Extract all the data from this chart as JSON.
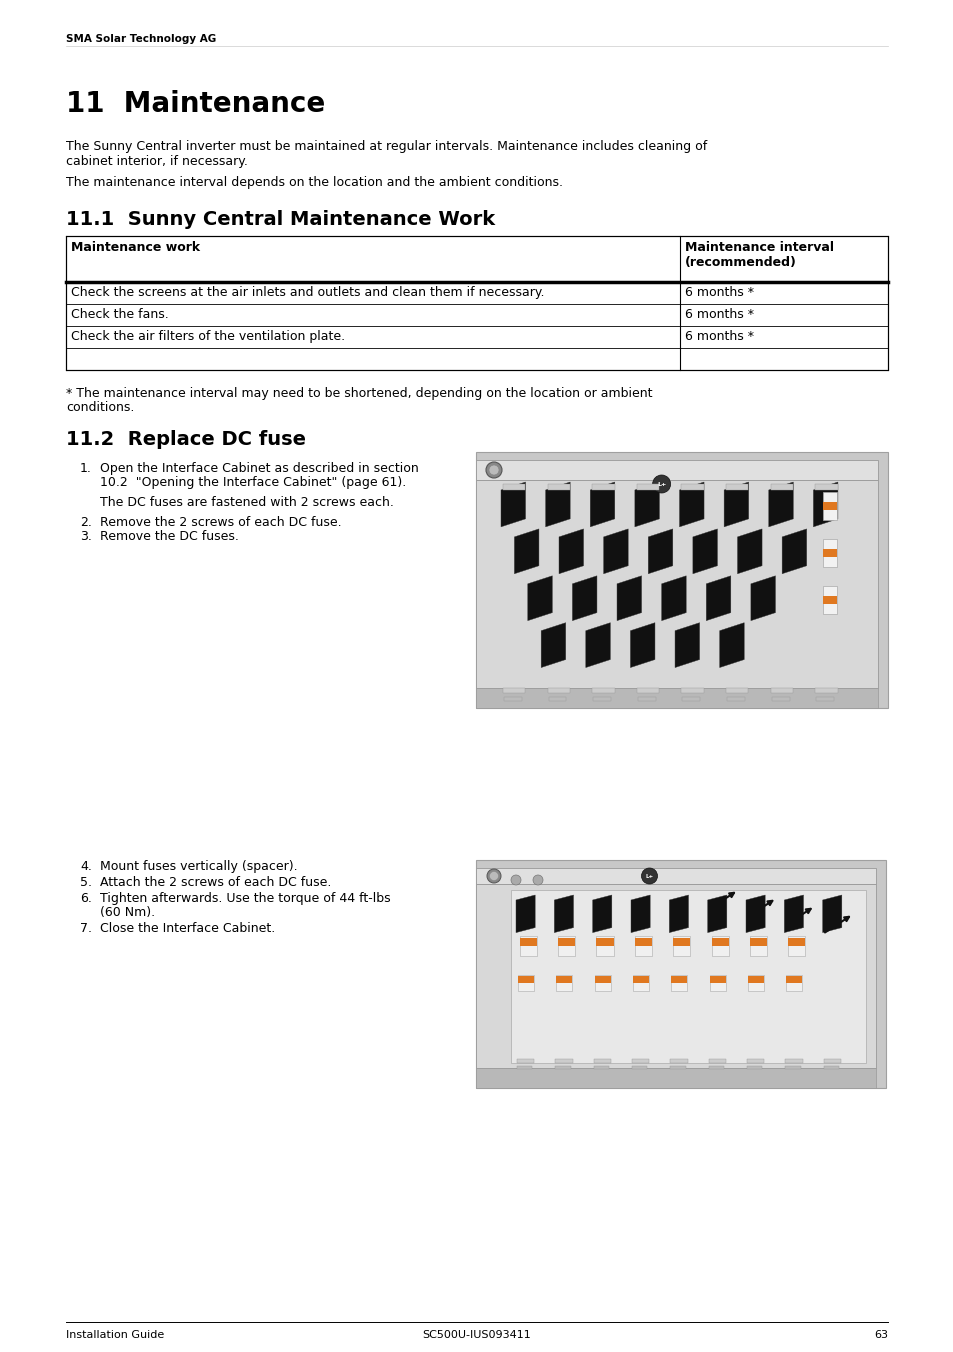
{
  "page_bg": "#ffffff",
  "header_text": "SMA Solar Technology AG",
  "header_font_size": 7.5,
  "chapter_title": "11  Maintenance",
  "chapter_title_size": 20,
  "para1_line1": "The Sunny Central inverter must be maintained at regular intervals. Maintenance includes cleaning of",
  "para1_line2": "cabinet interior, if necessary.",
  "para2": "The maintenance interval depends on the location and the ambient conditions.",
  "section1_title": "11.1  Sunny Central Maintenance Work",
  "section1_title_size": 14,
  "table_header_col1": "Maintenance work",
  "table_header_col2": "Maintenance interval\n(recommended)",
  "table_rows": [
    [
      "Check the screens at the air inlets and outlets and clean them if necessary.",
      "6 months *"
    ],
    [
      "Check the fans.",
      "6 months *"
    ],
    [
      "Check the air filters of the ventilation plate.",
      "6 months *"
    ]
  ],
  "table_note_line1": "* The maintenance interval may need to be shortened, depending on the location or ambient",
  "table_note_line2": "conditions.",
  "section2_title": "11.2  Replace DC fuse",
  "section2_title_size": 14,
  "step1_line1": "Open the Interface Cabinet as described in section",
  "step1_line2": "10.2  \"Opening the Interface Cabinet\" (page 61).",
  "step1_line3": "The DC fuses are fastened with 2 screws each.",
  "step2": "Remove the 2 screws of each DC fuse.",
  "step3": "Remove the DC fuses.",
  "step4": "Mount fuses vertically (spacer).",
  "step5": "Attach the 2 screws of each DC fuse.",
  "step6_line1": "Tighten afterwards. Use the torque of 44 ft-lbs",
  "step6_line2": "(60 Nm).",
  "step7": "Close the Interface Cabinet.",
  "footer_left": "Installation Guide",
  "footer_right": "SC500U-IUS093411",
  "footer_page": "63",
  "body_font_size": 9,
  "step_font_size": 9,
  "text_color": "#000000",
  "gray_panel": "#c8c8c8",
  "gray_dark": "#a0a0a0",
  "gray_light": "#e0e0e0",
  "gray_mid": "#b8b8b8",
  "orange": "#e07820",
  "white_fuse": "#f0f0f0",
  "black_arrow": "#1a1a1a"
}
